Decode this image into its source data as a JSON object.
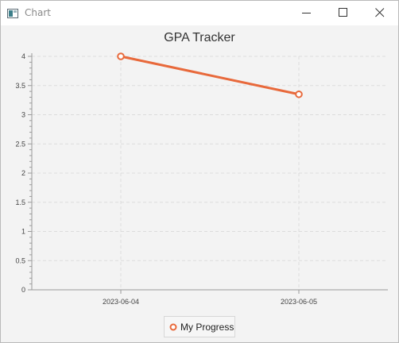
{
  "window": {
    "title": "Chart"
  },
  "colors": {
    "series": "#e8693b",
    "grid": "#dcdcdc",
    "axis": "#9a9a9a",
    "background": "#f3f3f3"
  },
  "icons": {
    "app": "chart-app-icon",
    "minimize": "minimize-icon",
    "maximize": "maximize-icon",
    "close": "close-icon"
  },
  "chart_data": {
    "type": "line",
    "title": "GPA Tracker",
    "xlabel": "",
    "ylabel": "",
    "categories": [
      "2023-06-04",
      "2023-06-05"
    ],
    "series": [
      {
        "name": "My Progress",
        "values": [
          4.0,
          3.35
        ]
      }
    ],
    "ylim": [
      0,
      4
    ],
    "yticks": [
      "0",
      "0.5",
      "1",
      "1.5",
      "2",
      "2.5",
      "3",
      "3.5",
      "4"
    ],
    "grid": true,
    "legend_position": "bottom"
  }
}
